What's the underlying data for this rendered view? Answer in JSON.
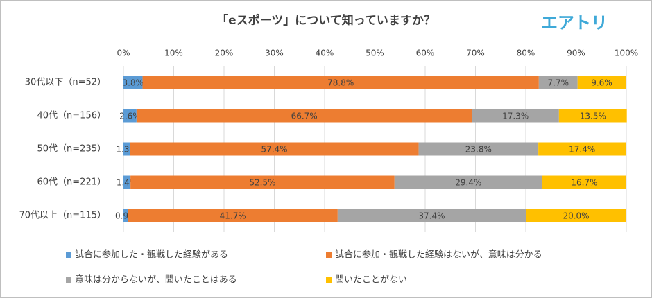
{
  "logo": "エアトリ",
  "chart_data": {
    "type": "stacked-bar-horizontal",
    "title": "「eスポーツ」について知っていますか？",
    "categories": [
      "30代以下（n=52）",
      "40代（n=156）",
      "50代（n=235）",
      "60代（n=221）",
      "70代以上（n=115）"
    ],
    "series": [
      {
        "name": "試合に参加した・観戦した経験がある",
        "color": "#5b9bd5",
        "values": [
          3.8,
          2.6,
          1.3,
          1.4,
          0.9
        ],
        "value_labels": [
          "3.8%",
          "2.6%",
          "1.3%",
          "1.4%",
          "0.9%"
        ]
      },
      {
        "name": "試合に参加・観戦した経験はないが、意味は分かる",
        "color": "#ed7d31",
        "values": [
          78.8,
          66.7,
          57.4,
          52.5,
          41.7
        ],
        "value_labels": [
          "78.8%",
          "66.7%",
          "57.4%",
          "52.5%",
          "41.7%"
        ]
      },
      {
        "name": "意味は分からないが、聞いたことはある",
        "color": "#a5a5a5",
        "values": [
          7.7,
          17.3,
          23.8,
          29.4,
          37.4
        ],
        "value_labels": [
          "7.7%",
          "17.3%",
          "23.8%",
          "29.4%",
          "37.4%"
        ]
      },
      {
        "name": "聞いたことがない",
        "color": "#ffc000",
        "values": [
          9.6,
          13.5,
          17.4,
          16.7,
          20.0
        ],
        "value_labels": [
          "9.6%",
          "13.5%",
          "17.4%",
          "16.7%",
          "20.0%"
        ]
      }
    ],
    "xlim": [
      0,
      100
    ],
    "xticks": [
      {
        "value": 0,
        "label": "0%"
      },
      {
        "value": 10,
        "label": "10%"
      },
      {
        "value": 20,
        "label": "20%"
      },
      {
        "value": 30,
        "label": "30%"
      },
      {
        "value": 40,
        "label": "40%"
      },
      {
        "value": 50,
        "label": "50%"
      },
      {
        "value": 60,
        "label": "60%"
      },
      {
        "value": 70,
        "label": "70%"
      },
      {
        "value": 80,
        "label": "80%"
      },
      {
        "value": 90,
        "label": "90%"
      },
      {
        "value": 100,
        "label": "100%"
      }
    ],
    "grid": true,
    "legend": "bottom"
  }
}
